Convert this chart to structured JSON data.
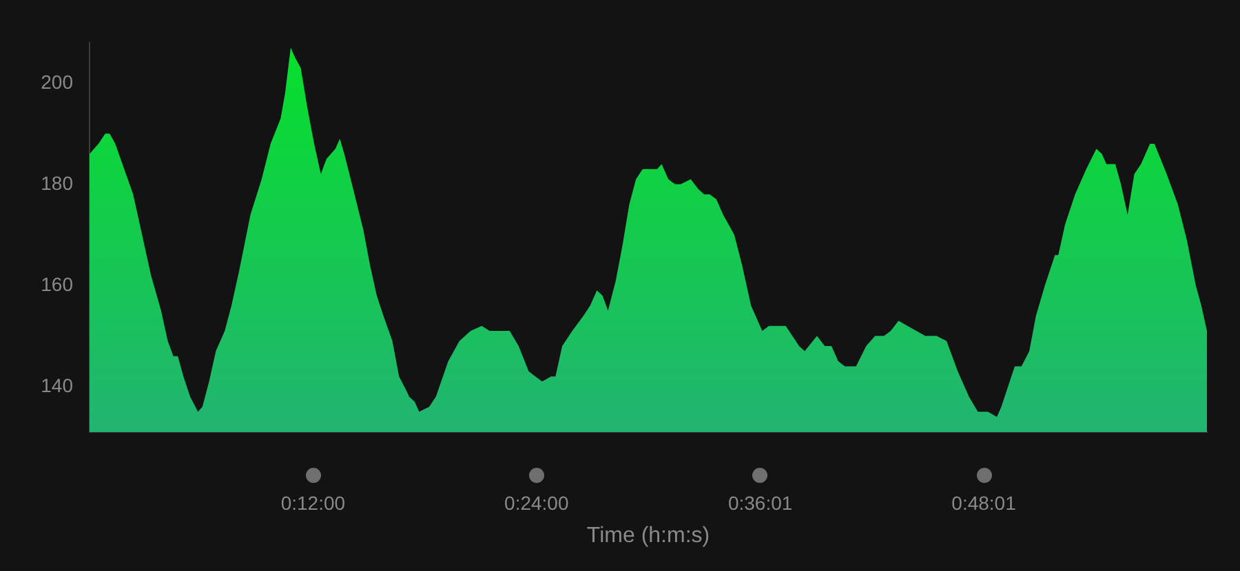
{
  "chart_data": {
    "type": "area",
    "xlabel": "Time (h:m:s)",
    "x": [
      0,
      0.004,
      0.008,
      0.014,
      0.018,
      0.023,
      0.031,
      0.039,
      0.047,
      0.055,
      0.064,
      0.07,
      0.075,
      0.079,
      0.084,
      0.09,
      0.097,
      0.101,
      0.107,
      0.113,
      0.121,
      0.127,
      0.134,
      0.144,
      0.154,
      0.162,
      0.171,
      0.175,
      0.18,
      0.184,
      0.189,
      0.195,
      0.201,
      0.207,
      0.212,
      0.22,
      0.224,
      0.228,
      0.236,
      0.245,
      0.251,
      0.257,
      0.263,
      0.271,
      0.277,
      0.284,
      0.286,
      0.291,
      0.295,
      0.304,
      0.31,
      0.321,
      0.331,
      0.341,
      0.351,
      0.358,
      0.376,
      0.384,
      0.393,
      0.399,
      0.405,
      0.413,
      0.417,
      0.423,
      0.432,
      0.442,
      0.448,
      0.454,
      0.459,
      0.464,
      0.471,
      0.477,
      0.483,
      0.489,
      0.495,
      0.501,
      0.508,
      0.512,
      0.518,
      0.524,
      0.529,
      0.538,
      0.545,
      0.55,
      0.555,
      0.561,
      0.567,
      0.577,
      0.584,
      0.592,
      0.602,
      0.608,
      0.614,
      0.623,
      0.629,
      0.635,
      0.64,
      0.651,
      0.658,
      0.664,
      0.67,
      0.676,
      0.686,
      0.695,
      0.703,
      0.711,
      0.717,
      0.724,
      0.732,
      0.74,
      0.748,
      0.758,
      0.767,
      0.777,
      0.787,
      0.795,
      0.804,
      0.812,
      0.816,
      0.822,
      0.828,
      0.834,
      0.841,
      0.847,
      0.855,
      0.864,
      0.867,
      0.873,
      0.882,
      0.892,
      0.901,
      0.906,
      0.91,
      0.918,
      0.923,
      0.929,
      0.935,
      0.941,
      0.949,
      0.953,
      0.964,
      0.974,
      0.982,
      0.99,
      0.995,
      0.999,
      1
    ],
    "values": [
      186,
      187,
      188,
      190,
      190,
      188,
      183,
      178,
      170,
      162,
      155,
      149,
      146,
      146,
      142,
      138,
      135,
      136,
      141,
      147,
      151,
      156,
      163,
      174,
      181,
      188,
      193,
      198,
      207,
      205,
      203,
      195,
      188,
      182,
      185,
      187,
      189,
      186,
      179,
      171,
      164,
      158,
      154,
      149,
      142,
      139,
      138,
      137,
      135,
      136,
      138,
      145,
      149,
      151,
      152,
      151,
      151,
      148,
      143,
      142,
      141,
      142,
      142,
      148,
      151,
      154,
      156,
      159,
      158,
      155,
      161,
      168,
      176,
      181,
      183,
      183,
      183,
      184,
      181,
      180,
      180,
      181,
      179,
      178,
      178,
      177,
      174,
      170,
      164,
      156,
      151,
      152,
      152,
      152,
      150,
      148,
      147,
      150,
      148,
      148,
      145,
      144,
      144,
      148,
      150,
      150,
      151,
      153,
      152,
      151,
      150,
      150,
      149,
      143,
      138,
      135,
      135,
      134,
      136,
      140,
      144,
      144,
      147,
      154,
      160,
      166,
      166,
      172,
      178,
      183,
      187,
      186,
      184,
      184,
      180,
      174,
      182,
      184,
      188,
      188,
      182,
      176,
      169,
      160,
      156,
      152,
      151
    ],
    "color": "#06e02a",
    "xlim": [
      0,
      1
    ],
    "xticks": [
      {
        "value": 0.2,
        "label": "0:12:00"
      },
      {
        "value": 0.4,
        "label": "0:24:00"
      },
      {
        "value": 0.60028,
        "label": "0:36:01"
      },
      {
        "value": 0.80028,
        "label": "0:48:01"
      }
    ],
    "ylim": [
      131,
      208
    ],
    "yticks": [
      140,
      160,
      180,
      200
    ],
    "grid": false,
    "legend": false,
    "marker": "none"
  }
}
